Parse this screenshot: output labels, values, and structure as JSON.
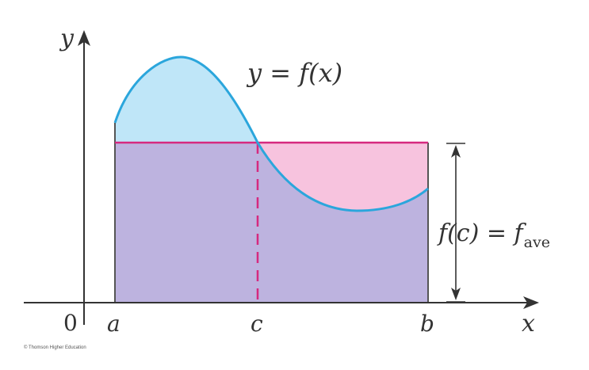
{
  "diagram": {
    "axis_labels": {
      "y": "y",
      "x": "x",
      "origin": "0"
    },
    "tick_labels": {
      "a": "a",
      "c": "c",
      "b": "b"
    },
    "curve_label": "y = f(x)",
    "average_label": {
      "lhs": "f(c) = f",
      "subscript": "ave"
    },
    "credit": "© Thomson Higher Education",
    "colors": {
      "curve": "#2ba6dc",
      "area_above": "#bfe6f8",
      "area_rect": "#bdb3df",
      "area_pink": "#f7c3de",
      "average_line": "#d6297f",
      "axis": "#333333"
    }
  }
}
